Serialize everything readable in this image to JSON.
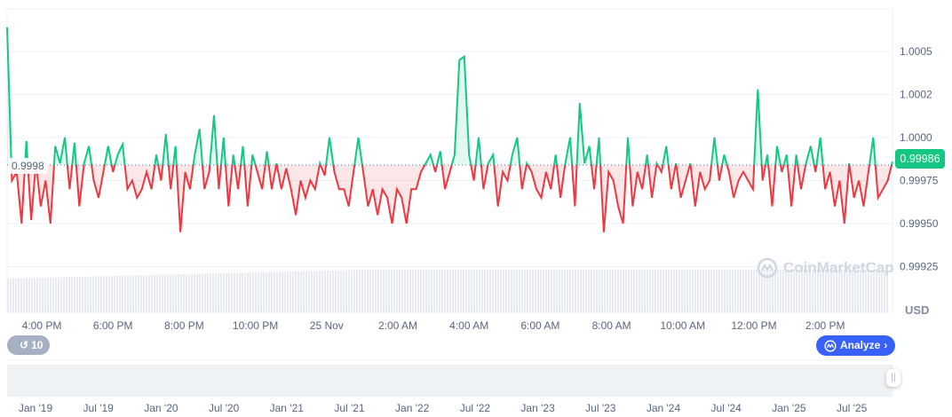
{
  "chart_data": {
    "type": "line",
    "title": "",
    "xlabel": "",
    "ylabel": "",
    "unit_label": "USD",
    "ylim": [
      0.99915,
      1.0007
    ],
    "y_ticks": [
      "0.99925",
      "0.99950",
      "0.99975",
      "1.0000",
      "1.0002",
      "1.0005"
    ],
    "y_tick_values": [
      0.99925,
      0.9995,
      0.99975,
      1.0,
      1.00025,
      1.0005
    ],
    "x_ticks": [
      "4:00 PM",
      "6:00 PM",
      "8:00 PM",
      "10:00 PM",
      "25 Nov",
      "2:00 AM",
      "4:00 AM",
      "6:00 AM",
      "8:00 AM",
      "10:00 AM",
      "12:00 PM",
      "2:00 PM"
    ],
    "baseline": 0.99984,
    "baseline_label": "0.9998",
    "current_price": "0.99986",
    "grid": true,
    "colors": {
      "up": "#16c784",
      "down": "#ea3943",
      "volume": "#e8ecf2",
      "accent": "#3861fb"
    },
    "values": [
      1.00064,
      0.99975,
      0.9998,
      0.9995,
      0.99998,
      0.99952,
      0.99985,
      0.9996,
      0.99975,
      0.9995,
      0.99995,
      0.99985,
      1.0,
      0.9997,
      0.99997,
      0.9996,
      0.99985,
      0.99995,
      0.99975,
      0.99965,
      0.9998,
      0.99995,
      0.9998,
      0.9999,
      0.99996,
      0.9997,
      0.99975,
      0.99965,
      0.9997,
      0.9998,
      0.9997,
      0.9999,
      0.99975,
      1.00002,
      0.9997,
      0.99995,
      0.99945,
      0.9998,
      0.9997,
      0.9999,
      1.00005,
      0.9997,
      0.9998,
      1.00013,
      0.9997,
      1.0,
      0.9996,
      0.9999,
      0.9997,
      0.99995,
      0.9996,
      0.9999,
      0.9998,
      0.9997,
      0.99992,
      0.9997,
      0.99985,
      0.9997,
      0.99982,
      0.9997,
      0.99955,
      0.99975,
      0.99965,
      0.99975,
      0.9997,
      0.99985,
      0.99978,
      1.0,
      0.9998,
      0.9997,
      0.9997,
      0.9996,
      0.9998,
      1.0,
      0.9998,
      0.9996,
      0.9997,
      0.99955,
      0.9997,
      0.99965,
      0.9995,
      0.9997,
      0.99965,
      0.9995,
      0.9997,
      0.9997,
      0.9998,
      0.99985,
      0.9999,
      0.9998,
      0.99992,
      0.9997,
      0.9998,
      0.9999,
      1.00045,
      1.00047,
      0.9999,
      0.99975,
      1.0,
      0.9997,
      0.99985,
      0.9999,
      0.9996,
      0.9998,
      0.99975,
      0.9999,
      1.0,
      0.9997,
      0.99985,
      0.9998,
      0.9997,
      0.99965,
      0.9998,
      0.9997,
      0.9999,
      0.99965,
      0.99985,
      1.0,
      0.9996,
      1.0002,
      0.99985,
      0.99995,
      0.9997,
      1.0,
      0.99945,
      0.9998,
      0.99975,
      0.9996,
      0.9995,
      1.0,
      0.9996,
      0.9998,
      0.9997,
      0.9999,
      0.99965,
      0.99985,
      0.9998,
      0.99995,
      0.9997,
      0.99985,
      0.99965,
      0.99975,
      0.99985,
      0.9996,
      0.9998,
      0.9997,
      0.99975,
      1.0,
      0.99975,
      0.9999,
      0.9998,
      0.99965,
      0.99975,
      0.9998,
      0.99975,
      0.9997,
      1.00028,
      0.99975,
      0.9999,
      0.9996,
      0.99995,
      0.9998,
      0.9999,
      0.9996,
      0.9999,
      0.9997,
      0.99985,
      0.99995,
      0.9998,
      1.0,
      0.9997,
      0.9998,
      0.9996,
      0.99975,
      0.9995,
      0.99985,
      0.99965,
      0.99975,
      0.9996,
      0.9998,
      1.0,
      0.99965,
      0.9997,
      0.99975,
      0.99986
    ]
  },
  "navigator": {
    "x_ticks": [
      "Jan '19",
      "Jul '19",
      "Jan '20",
      "Jul '20",
      "Jan '21",
      "Jul '21",
      "Jan '22",
      "Jul '22",
      "Jan '23",
      "Jul '23",
      "Jan '24",
      "Jul '24",
      "Jan '25",
      "Jul '25"
    ]
  },
  "controls": {
    "history_count": "10",
    "history_icon": "history-icon",
    "analyze_label": "Analyze",
    "analyze_icon": "cmc-logo-icon"
  },
  "watermark": "CoinMarketCap"
}
